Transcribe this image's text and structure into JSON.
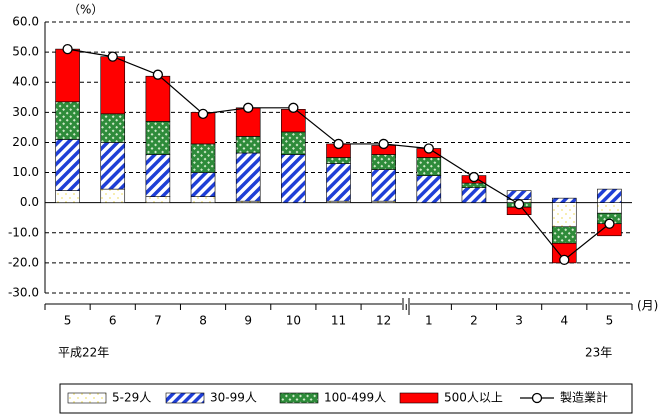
{
  "chart_data": {
    "type": "stacked_bar_line",
    "y_unit": "（%）",
    "x_unit": "(月)",
    "annotations": [
      "平成22年",
      "23年"
    ],
    "categories": [
      "5",
      "6",
      "7",
      "8",
      "9",
      "10",
      "11",
      "12",
      "1",
      "2",
      "3",
      "4",
      "5"
    ],
    "series": [
      {
        "name": "5-29人",
        "color": "#f2e37a",
        "values": [
          4,
          4.5,
          2,
          2,
          0.5,
          0,
          0.5,
          0.5,
          0,
          0,
          1,
          -8,
          -3.5
        ]
      },
      {
        "name": "30-99人",
        "color": "#1f3fd6",
        "values": [
          17,
          15.5,
          14,
          8,
          16,
          16,
          12.5,
          10.5,
          9,
          5,
          3,
          1.5,
          4.5
        ]
      },
      {
        "name": "100-499人",
        "color": "#2e8b3a",
        "values": [
          12.5,
          9.5,
          11,
          9.5,
          5.5,
          7.5,
          2,
          5,
          6,
          1.5,
          -1.5,
          -5.5,
          -3.5
        ]
      },
      {
        "name": "500人以上",
        "color": "#ff0000",
        "values": [
          17.5,
          19,
          15,
          10.5,
          9.5,
          7.5,
          4.5,
          3,
          3,
          2.5,
          -2.5,
          -6.5,
          -4
        ]
      },
      {
        "name": "製造業計",
        "color": "#000000",
        "type": "line",
        "values": [
          51,
          48.5,
          42.5,
          29.5,
          31.5,
          31.5,
          19.5,
          19.5,
          18,
          8.5,
          -0.5,
          -19,
          -7
        ]
      }
    ],
    "ylim": [
      -30,
      60
    ],
    "yticks": [
      {
        "value": -30,
        "label": "-30.0"
      },
      {
        "value": -20,
        "label": "-20.0"
      },
      {
        "value": -10,
        "label": "-10.0"
      },
      {
        "value": 0,
        "label": "0.0"
      },
      {
        "value": 10,
        "label": "10.0"
      },
      {
        "value": 20,
        "label": "20.0"
      },
      {
        "value": 30,
        "label": "30.0"
      },
      {
        "value": 40,
        "label": "40.0"
      },
      {
        "value": 50,
        "label": "50.0"
      },
      {
        "value": 60,
        "label": "60.0"
      }
    ],
    "grid": true,
    "legend": "bottom"
  }
}
